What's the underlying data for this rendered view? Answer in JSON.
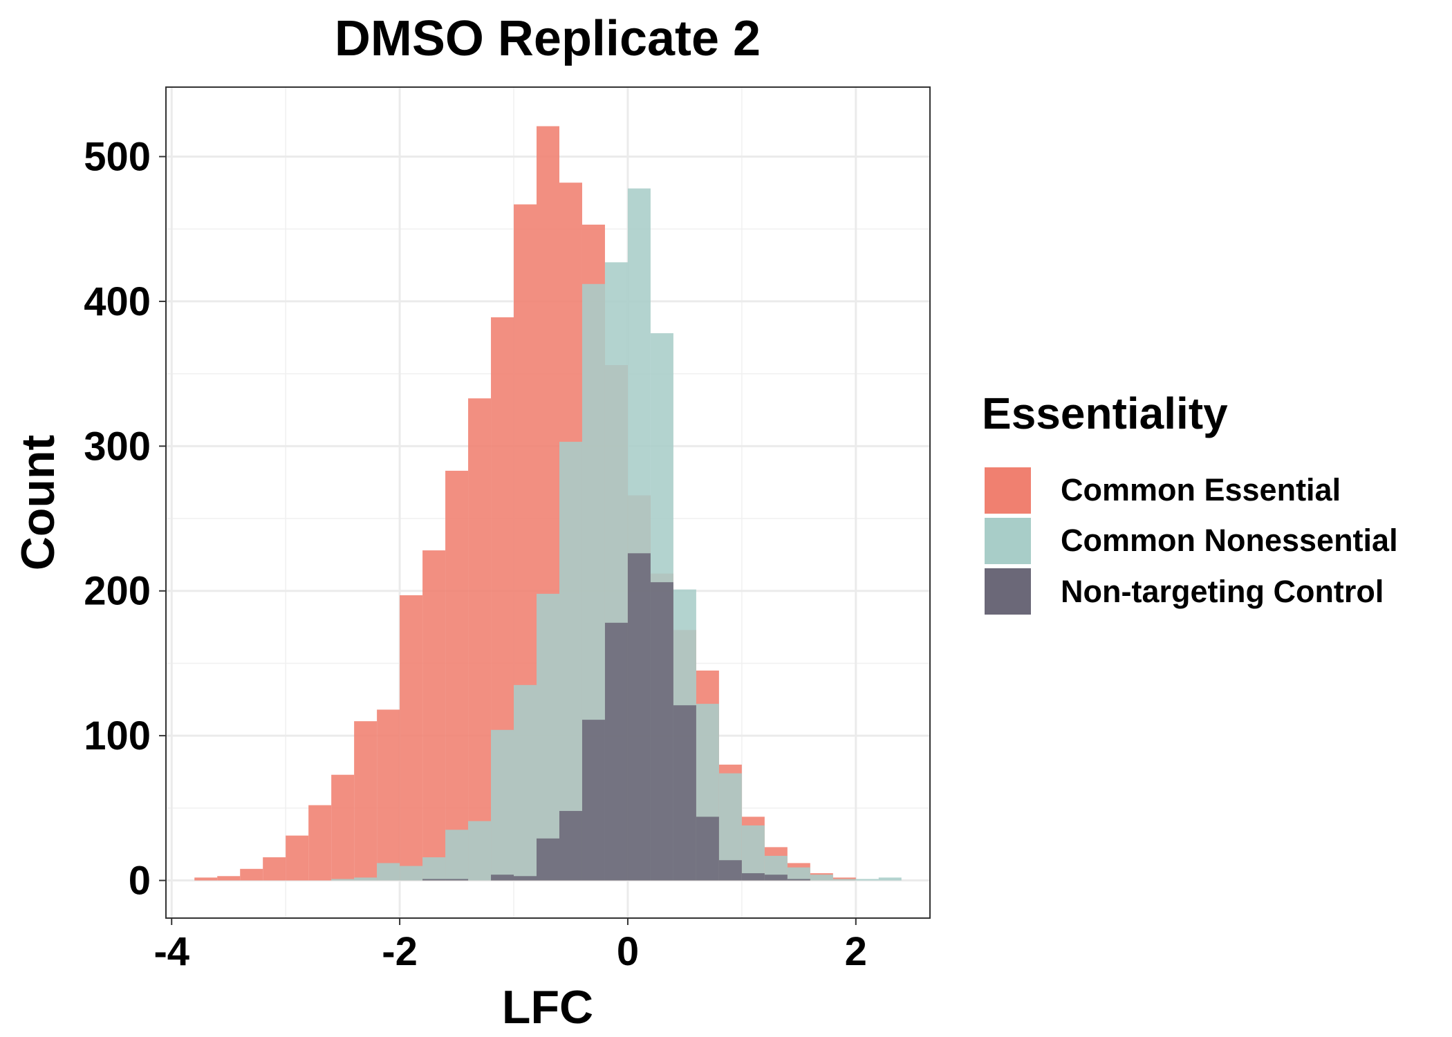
{
  "chart_data": {
    "type": "histogram",
    "title": "DMSO Replicate 2",
    "xlabel": "LFC",
    "ylabel": "Count",
    "xlim": [
      -4.05,
      2.65
    ],
    "ylim": [
      -26,
      548
    ],
    "x_ticks": [
      -4,
      -2,
      0,
      2
    ],
    "x_tick_labels": [
      "-4",
      "-2",
      "0",
      "2"
    ],
    "y_ticks": [
      0,
      100,
      200,
      300,
      400,
      500
    ],
    "y_tick_labels": [
      "0",
      "100",
      "200",
      "300",
      "400",
      "500"
    ],
    "grid": true,
    "legend_position": "right",
    "legend": {
      "title": "Essentiality",
      "entries": [
        {
          "label": "Common Essential",
          "color": "#f08070"
        },
        {
          "label": "Common Nonessential",
          "color": "#a8cdc8"
        },
        {
          "label": "Non-targeting Control",
          "color": "#6b6878"
        }
      ]
    },
    "bin_edges": [
      -3.8,
      -3.6,
      -3.4,
      -3.2,
      -3.0,
      -2.8,
      -2.6,
      -2.4,
      -2.2,
      -2.0,
      -1.8,
      -1.6,
      -1.4,
      -1.2,
      -1.0,
      -0.8,
      -0.6,
      -0.4,
      -0.2,
      0.0,
      0.2,
      0.4,
      0.6,
      0.8,
      1.0,
      1.2,
      1.4,
      1.6,
      1.8,
      2.0,
      2.2,
      2.4
    ],
    "series": [
      {
        "name": "Common Essential",
        "color": "#f08070",
        "values": [
          2,
          3,
          8,
          16,
          31,
          52,
          73,
          110,
          118,
          197,
          228,
          283,
          333,
          389,
          467,
          521,
          482,
          453,
          356,
          266,
          212,
          173,
          145,
          80,
          44,
          23,
          12,
          5,
          2,
          0,
          0
        ]
      },
      {
        "name": "Common Nonessential",
        "color": "#a8cdc8",
        "values": [
          0,
          0,
          0,
          0,
          0,
          0,
          1,
          2,
          12,
          10,
          16,
          35,
          41,
          104,
          135,
          198,
          303,
          412,
          427,
          478,
          378,
          201,
          122,
          74,
          38,
          17,
          9,
          4,
          1,
          1,
          2
        ]
      },
      {
        "name": "Non-targeting Control",
        "color": "#6b6878",
        "values": [
          0,
          0,
          0,
          0,
          0,
          0,
          0,
          0,
          0,
          0,
          1,
          1,
          0,
          4,
          3,
          29,
          48,
          111,
          178,
          226,
          206,
          121,
          44,
          14,
          5,
          4,
          1,
          0,
          0,
          0,
          0
        ]
      }
    ]
  }
}
